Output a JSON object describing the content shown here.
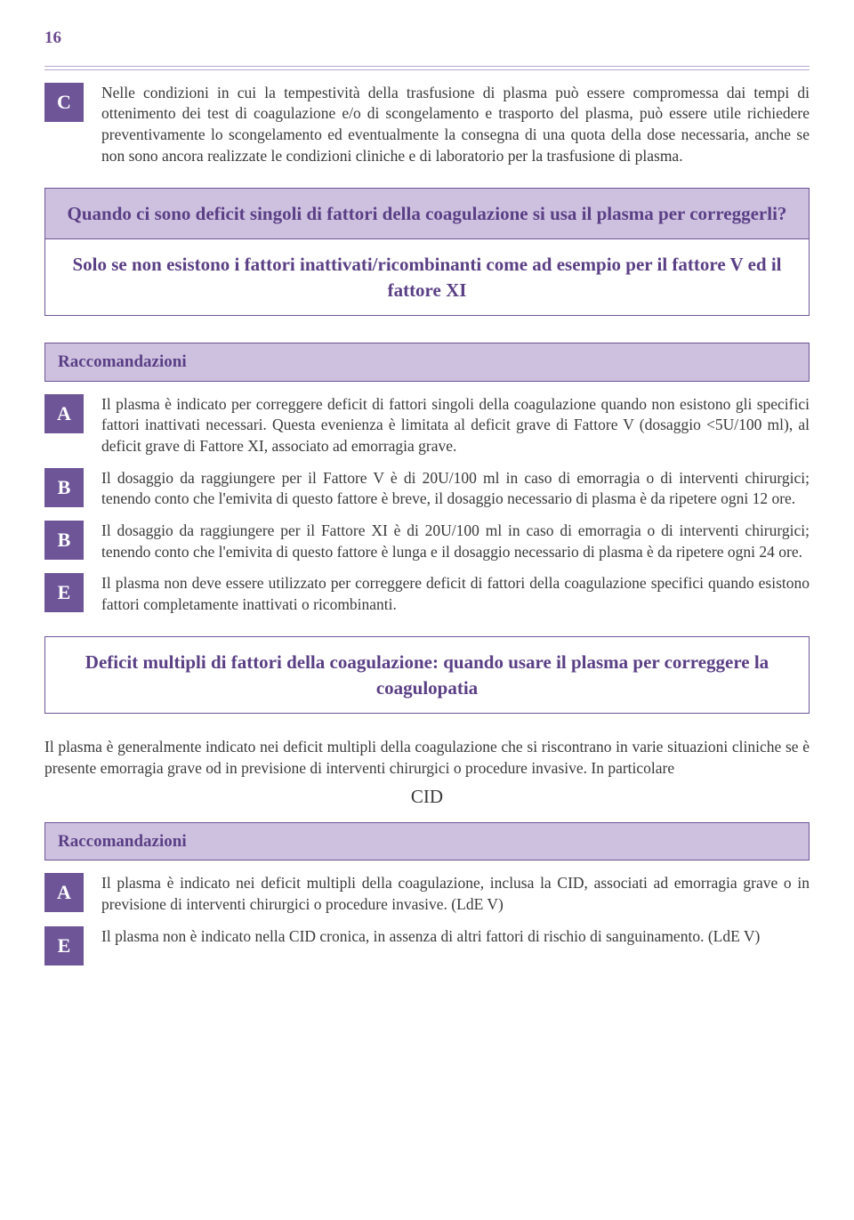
{
  "page_number": "16",
  "colors": {
    "accent": "#6d5598",
    "accent_light": "#cec1e0",
    "accent_text": "#5a3f85",
    "body_text": "#3a3a3a",
    "rule": "#b7a6cf",
    "background": "#ffffff"
  },
  "typography": {
    "body_fontsize_pt": 13,
    "heading_fontsize_pt": 16,
    "grade_fontsize_pt": 17,
    "font_family": "Georgia / Gill Sans style serif-sans mix"
  },
  "top_item": {
    "grade": "C",
    "text": "Nelle condizioni in cui la tempestività della trasfusione di plasma può essere compromessa dai tempi di ottenimento dei test di coagulazione e/o di scongelamento e trasporto del plasma, può essere utile richiedere preventivamente lo scongelamento ed eventualmente la consegna di una quota della dose necessaria, anche se non sono ancora realizzate le condizioni cliniche e di laboratorio per la trasfusione di plasma."
  },
  "callout1": {
    "question": "Quando ci sono deficit singoli di fattori della coagulazione si usa il plasma per correggerli?",
    "answer": "Solo se non esistono i fattori inattivati/ricombinanti come ad esempio per il fattore V ed il fattore XI"
  },
  "recs1": {
    "title": "Raccomandazioni",
    "items": [
      {
        "grade": "A",
        "text": "Il plasma è indicato per correggere deficit di fattori singoli della coagulazione quando non esistono gli specifici fattori inattivati necessari. Questa evenienza è limitata al deficit grave di Fattore V (dosaggio <5U/100 ml), al deficit grave di Fattore XI, associato ad emorragia grave."
      },
      {
        "grade": "B",
        "text": "Il dosaggio da raggiungere per il Fattore V è di 20U/100 ml in caso di emorragia o di interventi chirurgici; tenendo conto che l'emivita di questo fattore è breve, il dosaggio necessario di plasma è da ripetere ogni 12 ore."
      },
      {
        "grade": "B",
        "text": "Il dosaggio da raggiungere per il Fattore XI è di 20U/100 ml in caso di emorragia o di interventi chirurgici; tenendo conto che l'emivita di questo fattore è lunga e il dosaggio necessario di plasma è da ripetere ogni 24 ore."
      },
      {
        "grade": "E",
        "text": "Il plasma non deve essere utilizzato per correggere deficit di fattori della coagulazione specifici quando esistono fattori completamente inattivati o ricombinanti."
      }
    ]
  },
  "callout2": {
    "text": "Deficit multipli di fattori della coagulazione: quando usare il plasma per correggere la coagulopatia"
  },
  "para2": "Il plasma è generalmente indicato nei deficit multipli della coagulazione che si riscontrano in varie situazioni cliniche se è presente emorragia grave od in previsione di interventi chirurgici o procedure invasive. In particolare",
  "subhead": "CID",
  "recs2": {
    "title": "Raccomandazioni",
    "items": [
      {
        "grade": "A",
        "text": "Il plasma è indicato nei deficit multipli della coagulazione, inclusa la CID, associati ad emorragia grave o in previsione di interventi chirurgici o procedure invasive. (LdE V)"
      },
      {
        "grade": "E",
        "text": "Il plasma non è indicato nella CID cronica, in assenza di altri fattori di rischio di sanguinamento. (LdE V)"
      }
    ]
  }
}
